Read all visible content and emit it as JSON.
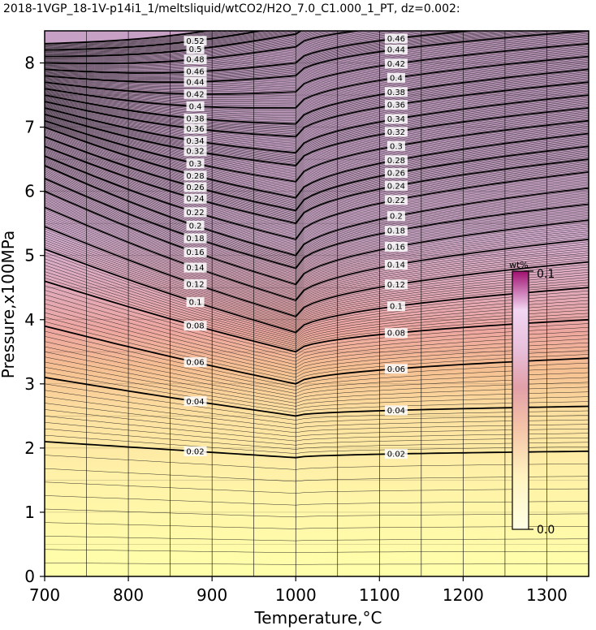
{
  "chart_data": {
    "type": "heatmap",
    "title": "2018-1VGP_18-1V-p14i1_1/meltsliquid/wtCO2/H2O_7.0_C1.000_1_PT, dz=0.002:",
    "xlabel": "Temperature,°C",
    "ylabel": "Pressure,x100MPa",
    "xlim": [
      700,
      1350
    ],
    "ylim": [
      0,
      8.5
    ],
    "xticks": [
      "700",
      "800",
      "900",
      "1000",
      "1100",
      "1200",
      "1300"
    ],
    "yticks": [
      "0",
      "1",
      "2",
      "3",
      "4",
      "5",
      "6",
      "7",
      "8"
    ],
    "grid": true,
    "contour_interval": 0.002,
    "labeled_contours": {
      "values": [
        "0.02",
        "0.04",
        "0.06",
        "0.08",
        "0.1",
        "0.12",
        "0.14",
        "0.16",
        "0.18",
        "0.2",
        "0.22",
        "0.24",
        "0.26",
        "0.28",
        "0.3",
        "0.32",
        "0.34",
        "0.36",
        "0.38",
        "0.4",
        "0.42",
        "0.44",
        "0.46",
        "0.48",
        "0.5",
        "0.52"
      ],
      "pressure_at_700C": [
        2.1,
        3.1,
        3.9,
        4.6,
        5.1,
        5.45,
        5.75,
        6.0,
        6.2,
        6.4,
        6.55,
        6.7,
        6.85,
        7.0,
        7.1,
        7.2,
        7.3,
        7.4,
        7.5,
        7.6,
        7.7,
        7.8,
        7.9,
        8.0,
        8.1,
        8.2
      ],
      "pressure_at_1000C": [
        1.85,
        2.5,
        3.0,
        3.5,
        3.8,
        4.05,
        4.3,
        4.55,
        4.8,
        5.0,
        5.25,
        5.5,
        5.7,
        5.9,
        6.15,
        6.4,
        6.6,
        6.85,
        7.05,
        7.3,
        7.55,
        7.8,
        8.0,
        8.25,
        8.45,
        8.6
      ],
      "pressure_at_1350C": [
        1.95,
        2.65,
        3.4,
        4.0,
        4.5,
        4.9,
        5.25,
        5.55,
        5.8,
        6.05,
        6.3,
        6.5,
        6.7,
        6.9,
        7.1,
        7.3,
        7.5,
        7.7,
        7.9,
        8.1,
        8.3,
        8.5,
        8.65,
        8.8,
        8.95,
        9.1
      ]
    },
    "colorbar": {
      "label": "wt%",
      "max_label": "0.1",
      "min_label": "0.0",
      "vmin": 0.0,
      "vmax": 0.1,
      "colors": [
        "#ffffb0",
        "#ffe6a0",
        "#f5b78c",
        "#e8a0a0",
        "#d7a8c8",
        "#e8c8f0",
        "#a0106c"
      ]
    }
  }
}
